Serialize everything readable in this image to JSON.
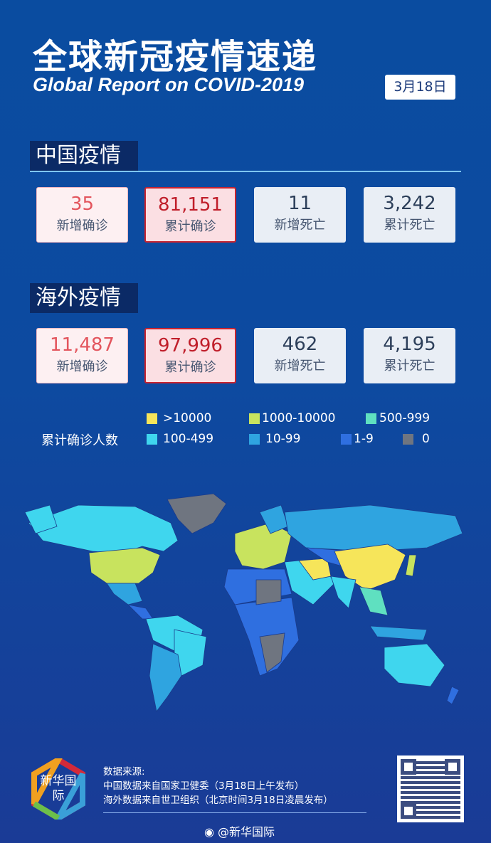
{
  "header": {
    "title": "全球新冠疫情速递",
    "subtitle": "Global Report on COVID-2019",
    "date": "3月18日"
  },
  "china": {
    "title": "中国疫情",
    "cards": [
      {
        "value": "35",
        "label": "新增确诊"
      },
      {
        "value": "81,151",
        "label": "累计确诊"
      },
      {
        "value": "11",
        "label": "新增死亡"
      },
      {
        "value": "3,242",
        "label": "累计死亡"
      }
    ]
  },
  "overseas": {
    "title": "海外疫情",
    "cards": [
      {
        "value": "11,487",
        "label": "新增确诊"
      },
      {
        "value": "97,996",
        "label": "累计确诊"
      },
      {
        "value": "462",
        "label": "新增死亡"
      },
      {
        "value": "4,195",
        "label": "累计死亡"
      }
    ]
  },
  "legend": {
    "title": "累计确诊人数",
    "items": [
      {
        "label": ">10000",
        "color": "#f6e55a"
      },
      {
        "label": "1000-10000",
        "color": "#c8e35e"
      },
      {
        "label": "500-999",
        "color": "#5fe0c0"
      },
      {
        "label": "100-499",
        "color": "#3fd6ee"
      },
      {
        "label": "10-99",
        "color": "#2fa4e0"
      },
      {
        "label": "1-9",
        "color": "#2f6fe0"
      },
      {
        "label": "0",
        "color": "#6f7580"
      }
    ]
  },
  "footer": {
    "logo": "新华国际",
    "source_title": "数据来源:",
    "source_china": "中国数据来自国家卫健委（3月18日上午发布）",
    "source_world": "海外数据来自世卫组织（北京时间3月18日凌晨发布）",
    "weibo": "@新华国际"
  }
}
